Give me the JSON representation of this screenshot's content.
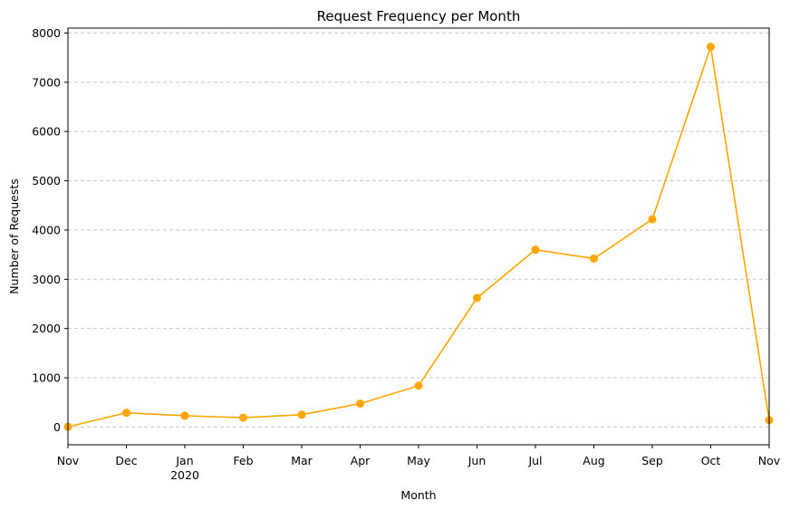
{
  "chart_data": {
    "type": "line",
    "title": "Request Frequency per Month",
    "xlabel": "Month",
    "ylabel": "Number of Requests",
    "categories": [
      "Nov",
      "Dec",
      "Jan",
      "Feb",
      "Mar",
      "Apr",
      "May",
      "Jun",
      "Jul",
      "Aug",
      "Sep",
      "Oct",
      "Nov"
    ],
    "x_sublabels": [
      "",
      "",
      "2020",
      "",
      "",
      "",
      "",
      "",
      "",
      "",
      "",
      "",
      ""
    ],
    "values": [
      5,
      290,
      230,
      190,
      250,
      475,
      840,
      2620,
      3600,
      3420,
      4220,
      7720,
      140
    ],
    "ylim": [
      -360,
      8100
    ],
    "yticks": [
      0,
      1000,
      2000,
      3000,
      4000,
      5000,
      6000,
      7000,
      8000
    ],
    "grid": true,
    "grid_axis": "y",
    "color": "#FFA500",
    "marker": "circle"
  }
}
